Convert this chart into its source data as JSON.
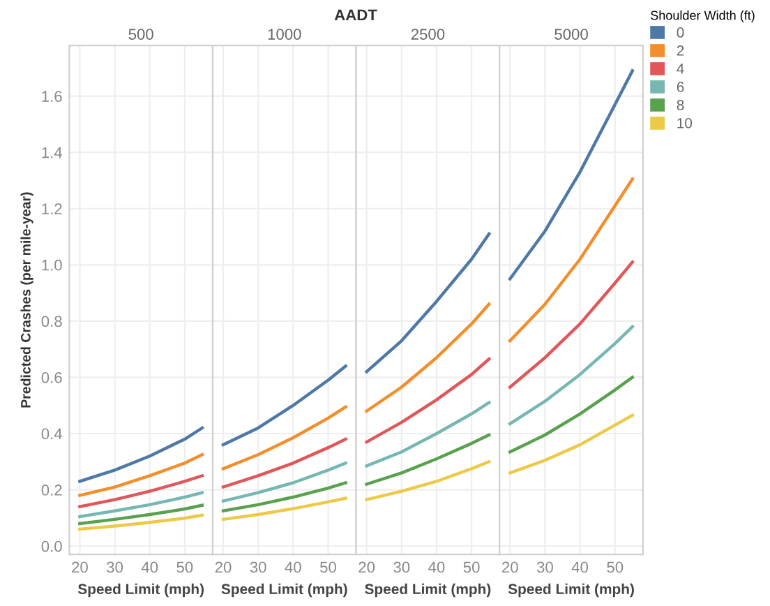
{
  "chart_data": [
    {
      "type": "line",
      "title": "500",
      "annotations": [
        "AADT"
      ],
      "legend_title": "Shoulder Width (ft)",
      "legend": "right",
      "xlabel": "Speed Limit (mph)",
      "ylabel": "Predicted Crashes (per mile-year)",
      "x": [
        20,
        30,
        40,
        50,
        55
      ],
      "xlim": [
        17,
        58
      ],
      "xticks": [
        20,
        30,
        40,
        50
      ],
      "ylim": [
        -0.03,
        1.78
      ],
      "yticks": [
        {
          "value": 0,
          "label": "0.0"
        },
        0.2,
        0.4,
        0.6,
        0.8,
        {
          "value": 1,
          "label": "1.0"
        },
        1.2,
        1.4,
        1.6
      ],
      "grid": true,
      "series": [
        {
          "name": "0",
          "color": "#4e79a7",
          "values": [
            0.23,
            0.27,
            0.32,
            0.38,
            0.42
          ]
        },
        {
          "name": "2",
          "color": "#f28e2b",
          "values": [
            0.18,
            0.21,
            0.25,
            0.295,
            0.325
          ]
        },
        {
          "name": "4",
          "color": "#e15759",
          "values": [
            0.14,
            0.165,
            0.195,
            0.23,
            0.25
          ]
        },
        {
          "name": "6",
          "color": "#76b7b2",
          "values": [
            0.105,
            0.125,
            0.147,
            0.174,
            0.19
          ]
        },
        {
          "name": "8",
          "color": "#59a14f",
          "values": [
            0.08,
            0.095,
            0.112,
            0.132,
            0.145
          ]
        },
        {
          "name": "10",
          "color": "#edc948",
          "values": [
            0.06,
            0.071,
            0.084,
            0.099,
            0.11
          ]
        }
      ]
    },
    {
      "type": "line",
      "title": "1000",
      "xlabel": "Speed Limit (mph)",
      "x": [
        20,
        30,
        40,
        50,
        55
      ],
      "xlim": [
        17,
        58
      ],
      "xticks": [
        20,
        30,
        40,
        50
      ],
      "ylim": [
        -0.03,
        1.78
      ],
      "yticks": [
        0,
        0.2,
        0.4,
        0.6,
        0.8,
        1,
        1.2,
        1.4,
        1.6
      ],
      "grid": true,
      "tick_labels": "x",
      "series": [
        {
          "name": "0",
          "color": "#4e79a7",
          "values": [
            0.36,
            0.42,
            0.5,
            0.59,
            0.64
          ]
        },
        {
          "name": "2",
          "color": "#f28e2b",
          "values": [
            0.275,
            0.325,
            0.385,
            0.455,
            0.495
          ]
        },
        {
          "name": "4",
          "color": "#e15759",
          "values": [
            0.21,
            0.25,
            0.295,
            0.35,
            0.38
          ]
        },
        {
          "name": "6",
          "color": "#76b7b2",
          "values": [
            0.16,
            0.19,
            0.225,
            0.27,
            0.295
          ]
        },
        {
          "name": "8",
          "color": "#59a14f",
          "values": [
            0.125,
            0.147,
            0.174,
            0.206,
            0.225
          ]
        },
        {
          "name": "10",
          "color": "#edc948",
          "values": [
            0.095,
            0.112,
            0.133,
            0.157,
            0.17
          ]
        }
      ]
    },
    {
      "type": "line",
      "title": "2500",
      "xlabel": "Speed Limit (mph)",
      "x": [
        20,
        30,
        40,
        50,
        55
      ],
      "xlim": [
        17,
        58
      ],
      "xticks": [
        20,
        30,
        40,
        50
      ],
      "ylim": [
        -0.03,
        1.78
      ],
      "yticks": [
        0,
        0.2,
        0.4,
        0.6,
        0.8,
        1,
        1.2,
        1.4,
        1.6
      ],
      "grid": true,
      "tick_labels": "x",
      "series": [
        {
          "name": "0",
          "color": "#4e79a7",
          "values": [
            0.62,
            0.73,
            0.87,
            1.02,
            1.11
          ]
        },
        {
          "name": "2",
          "color": "#f28e2b",
          "values": [
            0.48,
            0.565,
            0.67,
            0.79,
            0.86
          ]
        },
        {
          "name": "4",
          "color": "#e15759",
          "values": [
            0.37,
            0.44,
            0.52,
            0.61,
            0.665
          ]
        },
        {
          "name": "6",
          "color": "#76b7b2",
          "values": [
            0.285,
            0.335,
            0.4,
            0.47,
            0.51
          ]
        },
        {
          "name": "8",
          "color": "#59a14f",
          "values": [
            0.22,
            0.26,
            0.31,
            0.365,
            0.395
          ]
        },
        {
          "name": "10",
          "color": "#edc948",
          "values": [
            0.165,
            0.195,
            0.23,
            0.275,
            0.3
          ]
        }
      ]
    },
    {
      "type": "line",
      "title": "5000",
      "xlabel": "Speed Limit (mph)",
      "x": [
        20,
        30,
        40,
        50,
        55
      ],
      "xlim": [
        17,
        58
      ],
      "xticks": [
        20,
        30,
        40,
        50
      ],
      "ylim": [
        -0.03,
        1.78
      ],
      "yticks": [
        0,
        0.2,
        0.4,
        0.6,
        0.8,
        1,
        1.2,
        1.4,
        1.6
      ],
      "grid": true,
      "tick_labels": "x",
      "series": [
        {
          "name": "0",
          "color": "#4e79a7",
          "values": [
            0.95,
            1.12,
            1.33,
            1.57,
            1.69
          ]
        },
        {
          "name": "2",
          "color": "#f28e2b",
          "values": [
            0.73,
            0.86,
            1.02,
            1.21,
            1.305
          ]
        },
        {
          "name": "4",
          "color": "#e15759",
          "values": [
            0.565,
            0.67,
            0.79,
            0.935,
            1.01
          ]
        },
        {
          "name": "6",
          "color": "#76b7b2",
          "values": [
            0.435,
            0.515,
            0.61,
            0.72,
            0.78
          ]
        },
        {
          "name": "8",
          "color": "#59a14f",
          "values": [
            0.335,
            0.395,
            0.47,
            0.555,
            0.6
          ]
        },
        {
          "name": "10",
          "color": "#edc948",
          "values": [
            0.26,
            0.305,
            0.36,
            0.43,
            0.465
          ]
        }
      ]
    }
  ]
}
